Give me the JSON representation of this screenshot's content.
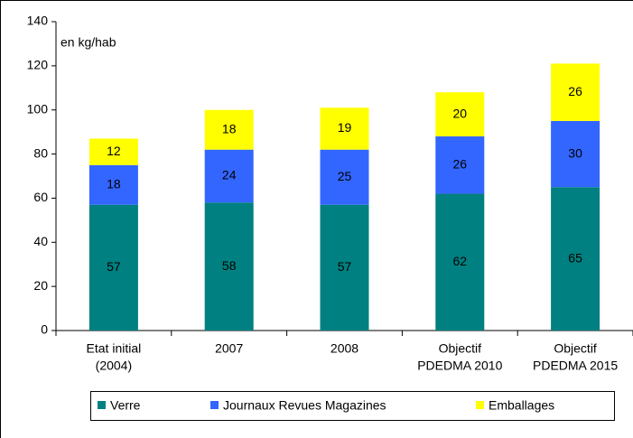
{
  "chart_data": {
    "type": "stacked-bar",
    "annotation": "en kg/hab",
    "categories": [
      [
        "Etat initial",
        "(2004)"
      ],
      [
        "2007"
      ],
      [
        "2008"
      ],
      [
        "Objectif",
        "PDEDMA 2010"
      ],
      [
        "Objectif",
        "PDEDMA 2015"
      ]
    ],
    "series": [
      {
        "name": "Verre",
        "color": "#008080",
        "values": [
          57,
          58,
          57,
          62,
          65
        ]
      },
      {
        "name": "Journaux Revues Magazines",
        "color": "#3366ff",
        "values": [
          18,
          24,
          25,
          26,
          30
        ]
      },
      {
        "name": "Emballages",
        "color": "#ffff00",
        "values": [
          12,
          18,
          19,
          20,
          26
        ]
      }
    ],
    "ylim": [
      0,
      140
    ],
    "yticks": [
      0,
      20,
      40,
      60,
      80,
      100,
      120,
      140
    ],
    "grid": false,
    "legend": "bottom"
  }
}
